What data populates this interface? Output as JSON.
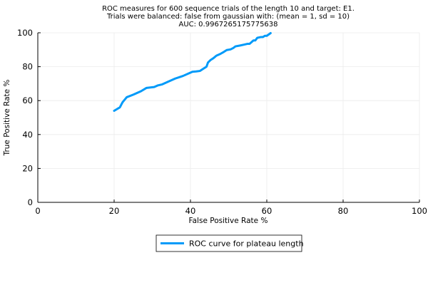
{
  "chart_data": {
    "type": "line",
    "title_lines": [
      "ROC measures for 600 sequence trials of the length 10 and target: E1.",
      "Trials were balanced: false from gaussian with: (mean = 1, sd = 10)",
      "AUC: 0.9967265175775638"
    ],
    "xlabel": "False Positive Rate %",
    "ylabel": "True Positive Rate %",
    "xlim": [
      0,
      100
    ],
    "ylim": [
      0,
      100
    ],
    "xticks": [
      0,
      20,
      40,
      60,
      80,
      100
    ],
    "yticks": [
      0,
      20,
      40,
      60,
      80,
      100
    ],
    "grid": true,
    "legend_placement": "bottom-center",
    "series": [
      {
        "name": "ROC curve for plateau length",
        "color": "#009af9",
        "x": [
          20.0,
          21.5,
          22.2,
          23.3,
          25.0,
          27.0,
          28.5,
          30.5,
          31.5,
          32.5,
          34.0,
          36.0,
          38.0,
          39.5,
          40.5,
          41.5,
          42.5,
          43.5,
          44.2,
          44.6,
          45.3,
          46.0,
          46.8,
          47.8,
          48.8,
          49.5,
          50.5,
          51.2,
          51.8,
          53.0,
          54.0,
          55.0,
          55.5,
          56.0,
          56.5,
          57.0,
          57.5,
          58.5,
          59.0,
          59.5,
          60.0,
          60.5,
          61.0
        ],
        "y": [
          54.0,
          56.0,
          59.0,
          62.0,
          63.5,
          65.5,
          67.5,
          68.0,
          69.0,
          69.5,
          71.0,
          73.0,
          74.5,
          76.0,
          77.0,
          77.2,
          77.5,
          79.0,
          80.0,
          82.5,
          84.0,
          85.0,
          86.5,
          87.5,
          88.8,
          89.8,
          90.2,
          91.0,
          92.0,
          92.5,
          93.0,
          93.5,
          93.5,
          94.5,
          95.5,
          95.5,
          97.0,
          97.5,
          97.5,
          98.2,
          98.2,
          99.0,
          99.8
        ]
      }
    ]
  },
  "colors": {
    "grid": "#ebebeb",
    "axis": "#000000"
  }
}
